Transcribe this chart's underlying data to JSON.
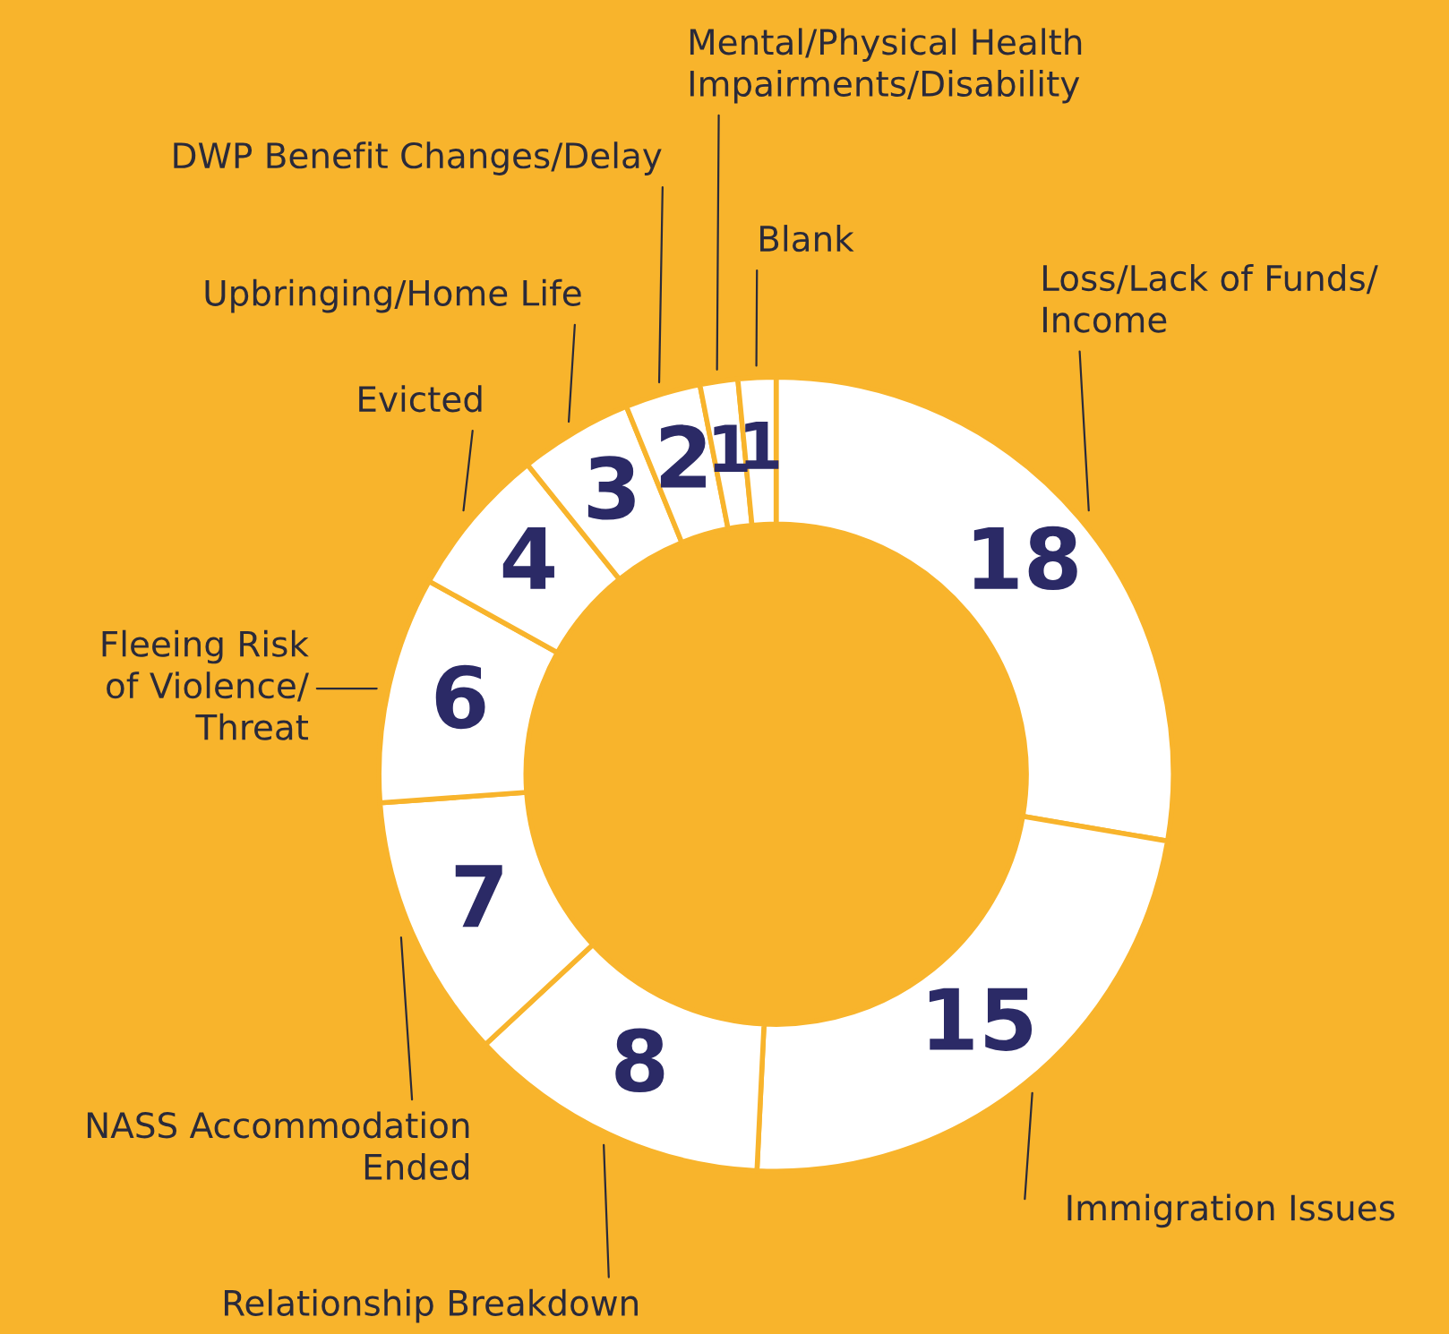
{
  "chart_data": {
    "type": "donut",
    "categories": [
      "Loss/Lack of Funds/\nIncome",
      "Immigration Issues",
      "Relationship Breakdown",
      "NASS Accommodation\nEnded",
      "Fleeing Risk\nof Violence/\nThreat",
      "Evicted",
      "Upbringing/Home Life",
      "DWP Benefit Changes/Delay",
      "Mental/Physical Health\nImpairments/Disability",
      "Blank"
    ],
    "values": [
      18,
      15,
      8,
      7,
      6,
      4,
      3,
      2,
      1,
      1
    ],
    "colors": [
      "#ffffff",
      "#ffffff",
      "#ffffff",
      "#ffffff",
      "#ffffff",
      "#ffffff",
      "#ffffff",
      "#ffffff",
      "#ffffff",
      "#ffffff"
    ],
    "data_labels": true
  }
}
